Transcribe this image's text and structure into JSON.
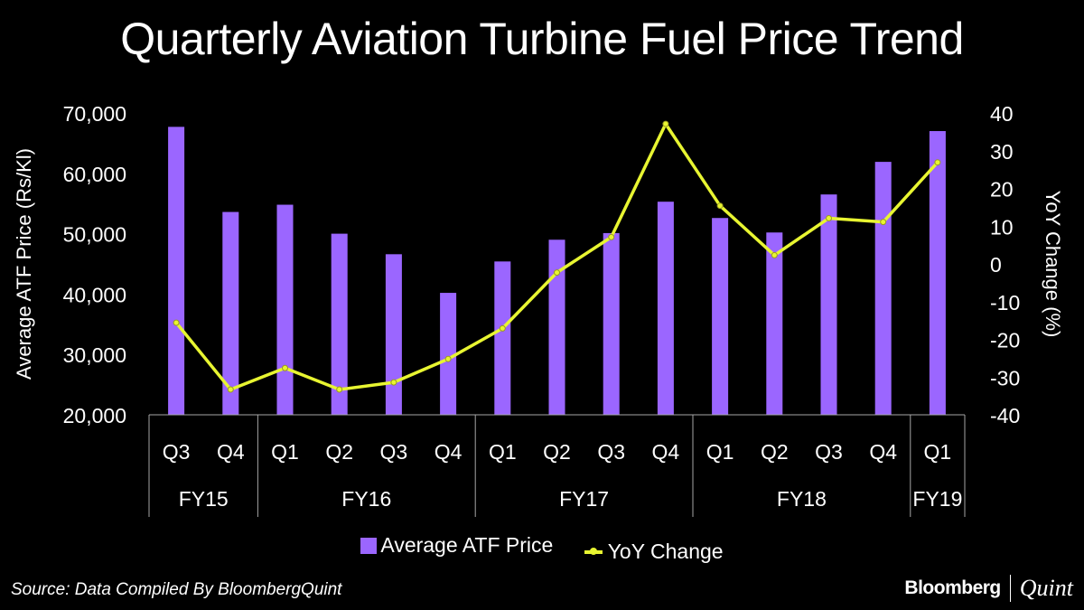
{
  "title": "Quarterly Aviation Turbine Fuel Price Trend",
  "legend": {
    "bar_label": "Average ATF Price",
    "line_label": "YoY Change"
  },
  "source": "Source: Data Compiled By BloombergQuint",
  "brand": {
    "left": "Bloomberg",
    "right": "Quint"
  },
  "colors": {
    "bar": "#9b66ff",
    "line": "#e8f531",
    "background": "#000000",
    "text": "#ffffff",
    "grid": "#a6a6a6"
  },
  "chart_data": {
    "type": "bar",
    "title": "Quarterly Aviation Turbine Fuel Price Trend",
    "xlabel": "",
    "ylabel": "Average ATF Price (Rs/Kl)",
    "y2label": "YoY Change (%)",
    "ylim": [
      20000,
      70000
    ],
    "y2lim": [
      -40,
      40
    ],
    "yticks": [
      "20,000",
      "30,000",
      "40,000",
      "50,000",
      "60,000",
      "70,000"
    ],
    "yticks_values": [
      20000,
      30000,
      40000,
      50000,
      60000,
      70000
    ],
    "y2ticks": [
      "-40",
      "-30",
      "-20",
      "-10",
      "0",
      "10",
      "20",
      "30",
      "40"
    ],
    "y2ticks_values": [
      -40,
      -30,
      -20,
      -10,
      0,
      10,
      20,
      30,
      40
    ],
    "categories": [
      "Q3",
      "Q4",
      "Q1",
      "Q2",
      "Q3",
      "Q4",
      "Q1",
      "Q2",
      "Q3",
      "Q4",
      "Q1",
      "Q2",
      "Q3",
      "Q4",
      "Q1"
    ],
    "groups": [
      {
        "label": "FY15",
        "count": 2
      },
      {
        "label": "FY16",
        "count": 4
      },
      {
        "label": "FY17",
        "count": 4
      },
      {
        "label": "FY18",
        "count": 4
      },
      {
        "label": "FY19",
        "count": 1
      }
    ],
    "legend_position": "bottom",
    "grid": false,
    "series": [
      {
        "name": "Average ATF Price",
        "type": "bar",
        "axis": "left",
        "values": [
          67700,
          53600,
          54800,
          50000,
          46600,
          40200,
          45400,
          49000,
          50100,
          55300,
          52600,
          50200,
          56500,
          61900,
          67000
        ]
      },
      {
        "name": "YoY Change",
        "type": "line",
        "axis": "right",
        "values": [
          -15.6,
          -33.3,
          -27.6,
          -33.3,
          -31.4,
          -25.2,
          -17.1,
          -2.3,
          7.1,
          37.1,
          15.4,
          2.3,
          12.1,
          11.1,
          26.9
        ]
      }
    ]
  }
}
